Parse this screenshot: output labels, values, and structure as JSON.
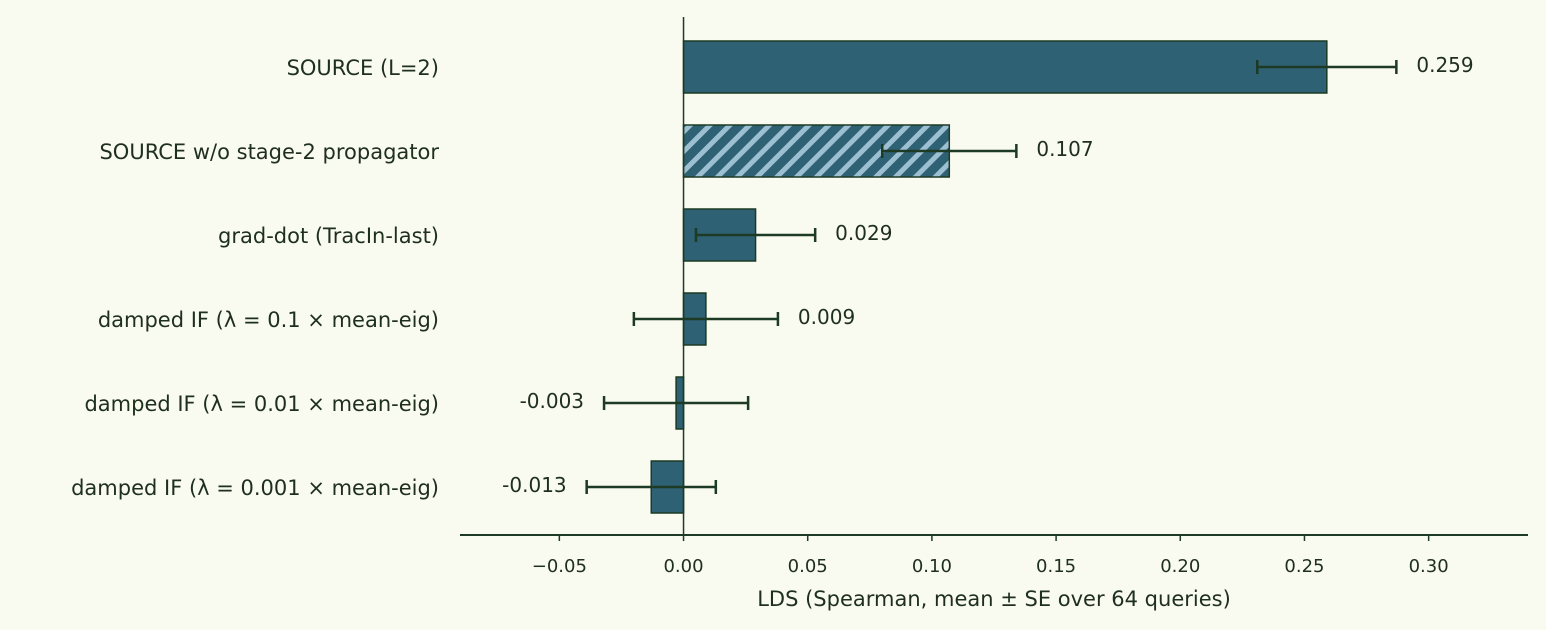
{
  "chart_data": {
    "type": "bar",
    "orientation": "horizontal",
    "title": "",
    "xlabel": "LDS (Spearman, mean ± SE over 64 queries)",
    "ylabel": "",
    "xlim": [
      -0.09,
      0.34
    ],
    "xticks": [
      -0.05,
      0.0,
      0.05,
      0.1,
      0.15,
      0.2,
      0.25,
      0.3
    ],
    "xtick_labels": [
      "−0.05",
      "0.00",
      "0.05",
      "0.10",
      "0.15",
      "0.20",
      "0.25",
      "0.30"
    ],
    "grid": false,
    "legend": "none",
    "categories": [
      "SOURCE (L=2)",
      "SOURCE w/o stage-2 propagator",
      "grad-dot (TracIn-last)",
      "damped IF (λ = 0.1 × mean-eig)",
      "damped IF (λ = 0.01 × mean-eig)",
      "damped IF (λ = 0.001 × mean-eig)"
    ],
    "values": [
      0.259,
      0.107,
      0.029,
      0.009,
      -0.003,
      -0.013
    ],
    "value_labels": [
      "0.259",
      "0.107",
      "0.029",
      "0.009",
      "-0.003",
      "-0.013"
    ],
    "errors": [
      0.028,
      0.027,
      0.024,
      0.029,
      0.029,
      0.026
    ],
    "hatched": [
      false,
      true,
      false,
      false,
      false,
      false
    ],
    "colors": {
      "bar": "#2e6174",
      "bar_edge": "#1c3a24",
      "hatch": "#9cc0d1",
      "error": "#1c3a24",
      "axis": "#1c3a24",
      "text": "#1e2f1e",
      "background": "#f9faf0"
    }
  }
}
